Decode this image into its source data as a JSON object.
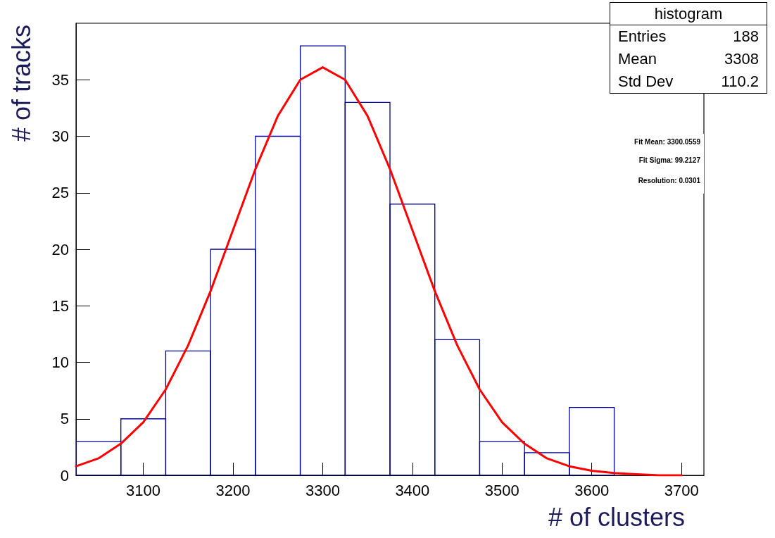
{
  "chart_data": {
    "type": "histogram",
    "xlabel": "# of clusters",
    "ylabel": "# of tracks",
    "bins": [
      3025,
      3075,
      3125,
      3175,
      3225,
      3275,
      3325,
      3375,
      3425,
      3475,
      3525,
      3575,
      3625
    ],
    "series": [
      {
        "color": "#000099",
        "values": [
          3,
          5,
          11,
          20,
          30,
          38,
          33,
          24,
          12,
          3,
          2,
          6
        ]
      },
      {
        "type": "line",
        "color": "#ff0000",
        "x": [
          3025,
          3050,
          3075,
          3100,
          3125,
          3150,
          3175,
          3200,
          3225,
          3250,
          3275,
          3300,
          3325,
          3350,
          3375,
          3400,
          3425,
          3450,
          3475,
          3500,
          3525,
          3550,
          3575,
          3600,
          3625,
          3650,
          3675,
          3700
        ],
        "values": [
          0.8,
          1.5,
          2.8,
          4.7,
          7.6,
          11.5,
          16.3,
          21.7,
          27.1,
          31.8,
          35.0,
          36.1,
          35.0,
          31.8,
          27.1,
          21.7,
          16.3,
          11.5,
          7.6,
          4.7,
          2.8,
          1.5,
          0.8,
          0.4,
          0.2,
          0.1,
          0.0,
          0.0
        ]
      }
    ],
    "xlim": [
      3025,
      3725
    ],
    "xticks": [
      3100,
      3200,
      3300,
      3400,
      3500,
      3600,
      3700
    ],
    "ylim": [
      0,
      40
    ],
    "yticks": [
      0,
      5,
      10,
      15,
      20,
      25,
      30,
      35
    ],
    "grid": false,
    "marker": "none",
    "line_style": "solid",
    "annotations": [
      "histogram",
      "Entries",
      "188",
      "Mean",
      "3308",
      "Std Dev",
      "110.2",
      "Fit Mean: 3300.0559",
      "Fit Sigma: 99.2127",
      "Resolution: 0.0301"
    ]
  }
}
